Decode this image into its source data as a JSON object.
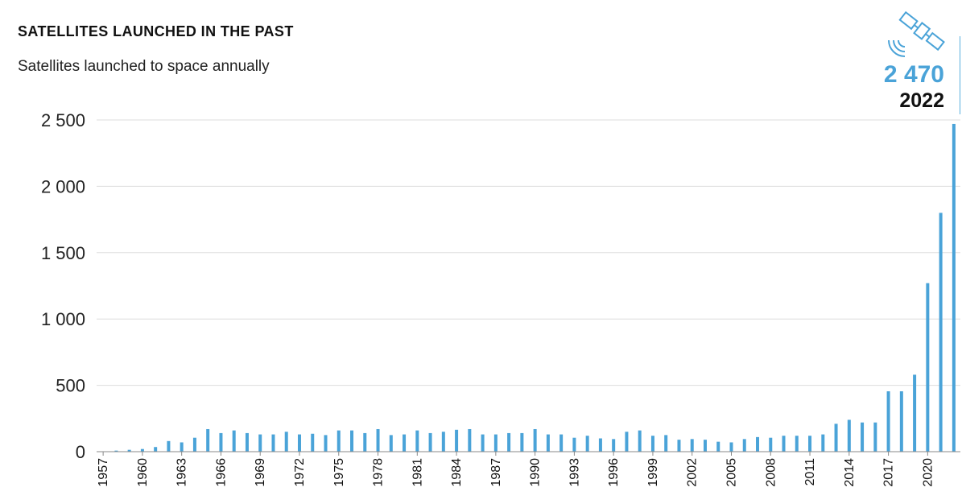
{
  "header": {
    "title": "SATELLITES LAUNCHED IN THE PAST",
    "subtitle": "Satellites launched to space annually"
  },
  "callout": {
    "value": "2 470",
    "year": "2022",
    "icon": "satellite-icon"
  },
  "colors": {
    "bar": "#4aa3d8",
    "grid": "#dddddd",
    "axis": "#888888"
  },
  "chart_data": {
    "type": "bar",
    "title": "SATELLITES LAUNCHED IN THE PAST",
    "subtitle": "Satellites launched to space annually",
    "xlabel": "",
    "ylabel": "",
    "ylim": [
      0,
      2500
    ],
    "yticks": [
      0,
      500,
      1000,
      1500,
      2000,
      2500
    ],
    "ytick_labels": [
      "0",
      "500",
      "1 000",
      "1 500",
      "2 000",
      "2 500"
    ],
    "grid": true,
    "categories": [
      1957,
      1958,
      1959,
      1960,
      1961,
      1962,
      1963,
      1964,
      1965,
      1966,
      1967,
      1968,
      1969,
      1970,
      1971,
      1972,
      1973,
      1974,
      1975,
      1976,
      1977,
      1978,
      1979,
      1980,
      1981,
      1982,
      1983,
      1984,
      1985,
      1986,
      1987,
      1988,
      1989,
      1990,
      1991,
      1992,
      1993,
      1994,
      1995,
      1996,
      1997,
      1998,
      1999,
      2000,
      2001,
      2002,
      2003,
      2004,
      2005,
      2006,
      2007,
      2008,
      2009,
      2010,
      2011,
      2012,
      2013,
      2014,
      2015,
      2016,
      2017,
      2018,
      2019,
      2020,
      2021,
      2022
    ],
    "xtick_labels": [
      "1957",
      "1960",
      "1963",
      "1966",
      "1969",
      "1972",
      "1975",
      "1978",
      "1981",
      "1984",
      "1987",
      "1990",
      "1993",
      "1996",
      "1999",
      "2002",
      "2005",
      "2008",
      "2011",
      "2014",
      "2017",
      "2020"
    ],
    "values": [
      2,
      8,
      14,
      20,
      35,
      80,
      70,
      105,
      170,
      140,
      160,
      140,
      130,
      130,
      150,
      130,
      135,
      125,
      160,
      160,
      140,
      170,
      125,
      130,
      160,
      140,
      150,
      165,
      170,
      130,
      130,
      140,
      140,
      170,
      130,
      130,
      105,
      120,
      100,
      95,
      150,
      160,
      120,
      125,
      90,
      95,
      90,
      75,
      70,
      95,
      110,
      105,
      120,
      120,
      120,
      130,
      210,
      240,
      220,
      220,
      455,
      455,
      580,
      1270,
      1800,
      2470
    ]
  }
}
